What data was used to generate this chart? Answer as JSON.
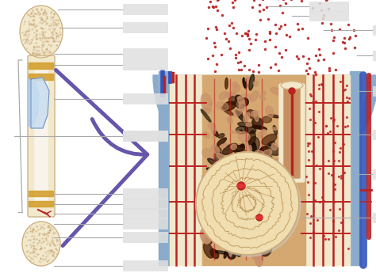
{
  "bg_color": "#ffffff",
  "fig_width": 4.74,
  "fig_height": 3.45,
  "dpi": 100,
  "bone_color": "#f2e8cc",
  "bone_outline": "#c8a878",
  "bone_light": "#faf5e8",
  "compact_color": "#e8d5a8",
  "periosteum_blue": "#8aabcc",
  "periosteum_blue2": "#6688bb",
  "vessel_red": "#bb2222",
  "vessel_blue": "#3355bb",
  "arrow_color": "#6655aa",
  "marrow_dark1": "#1a0800",
  "marrow_dark2": "#3d1a00",
  "marrow_base": "#c8906a",
  "label_line_color": "#aaaaaa",
  "label_box_color": "#e0e0e0",
  "endosteum_gold": "#d4a030"
}
